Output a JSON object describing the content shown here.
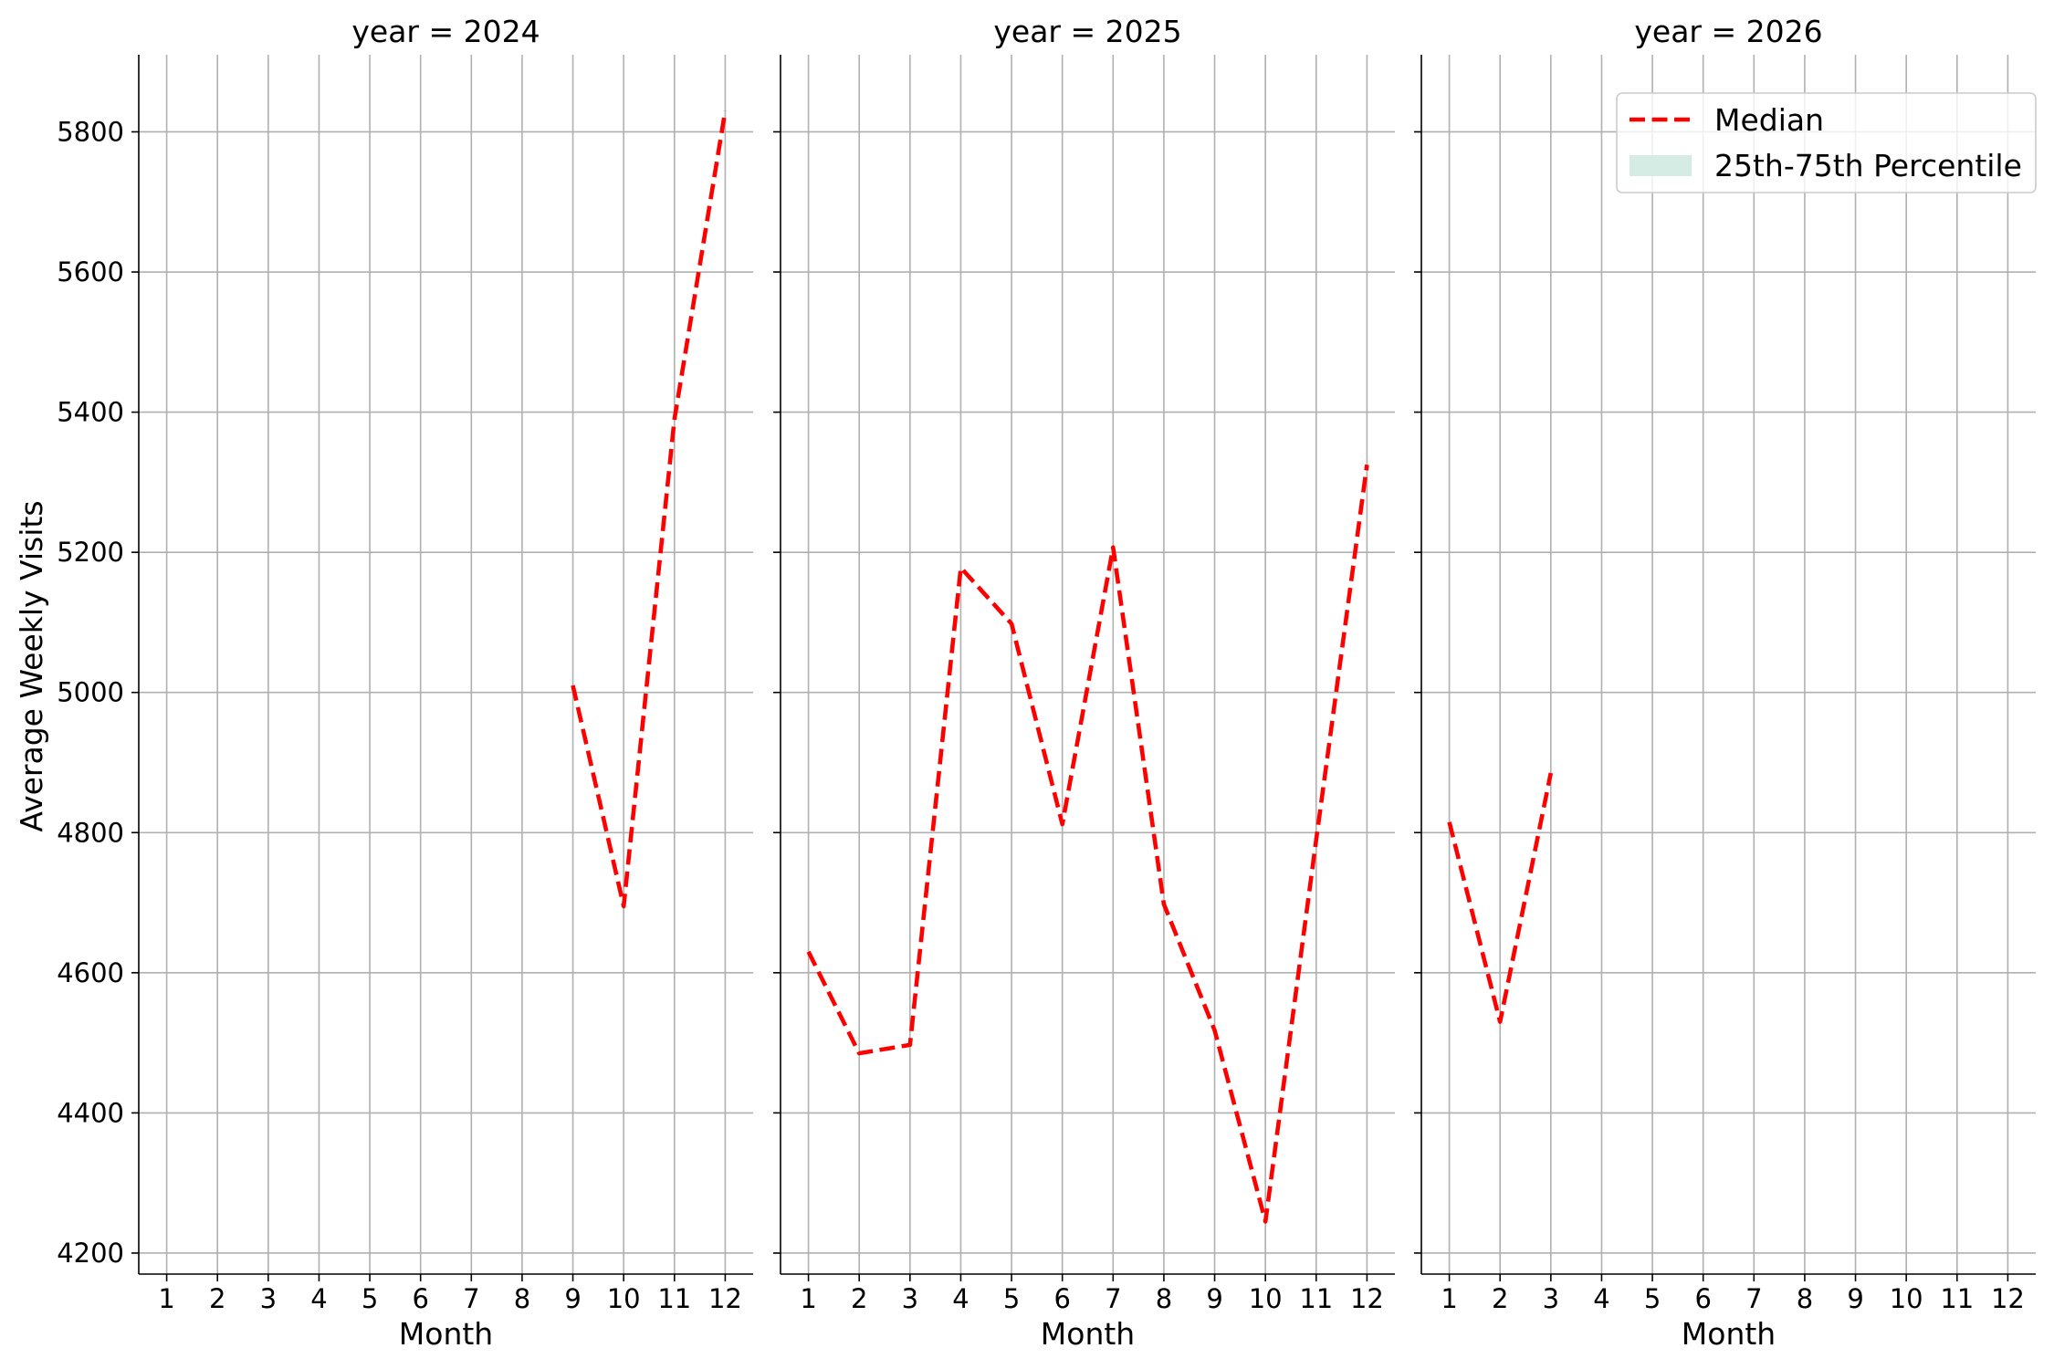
{
  "chart_data": {
    "type": "line",
    "ylabel": "Average Weekly Visits",
    "xlabel": "Month",
    "ylim": [
      4170,
      5910
    ],
    "xlim": [
      0.45,
      12.55
    ],
    "yticks": [
      4200,
      4400,
      4600,
      4800,
      5000,
      5200,
      5400,
      5600,
      5800
    ],
    "xticks": [
      1,
      2,
      3,
      4,
      5,
      6,
      7,
      8,
      9,
      10,
      11,
      12
    ],
    "grid": true,
    "line_color": "#ff0000",
    "band_color": "#d5ece4",
    "legend": {
      "placement": "top-right",
      "entries": [
        {
          "label": "Median",
          "kind": "line"
        },
        {
          "label": "25th-75th Percentile",
          "kind": "band"
        }
      ]
    },
    "panels": [
      {
        "title": "year = 2024",
        "series": [
          {
            "name": "Median",
            "x": [
              9,
              10,
              11,
              12
            ],
            "y": [
              5010,
              4695,
              5390,
              5830
            ]
          }
        ]
      },
      {
        "title": "year = 2025",
        "series": [
          {
            "name": "Median",
            "x": [
              1,
              2,
              3,
              4,
              5,
              6,
              7,
              8,
              9,
              10,
              11,
              12
            ],
            "y": [
              4630,
              4485,
              4497,
              5178,
              5098,
              4812,
              5207,
              4698,
              4518,
              4245,
              4790,
              5325
            ]
          }
        ]
      },
      {
        "title": "year = 2026",
        "series": [
          {
            "name": "Median",
            "x": [
              1,
              2,
              3
            ],
            "y": [
              4815,
              4530,
              4885
            ]
          }
        ]
      }
    ]
  }
}
